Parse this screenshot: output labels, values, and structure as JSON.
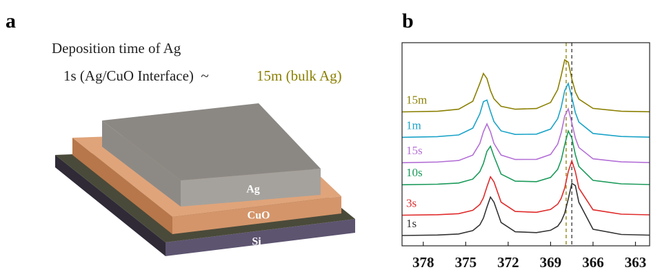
{
  "diagram": {
    "label": "a",
    "heading": "Deposition time of Ag",
    "range_start": "1s (Ag/CuO Interface)  ~",
    "range_end": "15m (bulk Ag)",
    "layers": [
      "Ag",
      "CuO",
      "Si"
    ]
  },
  "chart_data": {
    "type": "line",
    "label": "b",
    "x": [
      379.5,
      377,
      375.5,
      374.5,
      374,
      373.75,
      373.5,
      373.25,
      373,
      372.5,
      371.5,
      370,
      369,
      368.5,
      368.25,
      368,
      367.75,
      367.5,
      367.25,
      367,
      366,
      364,
      362
    ],
    "series": [
      {
        "name": "1s",
        "color": "#333333",
        "values": [
          0.61,
          0.64,
          0.7,
          0.9,
          1.24,
          1.64,
          2.29,
          2.88,
          2.58,
          1.38,
          0.83,
          0.78,
          0.92,
          1.16,
          1.45,
          1.93,
          2.76,
          3.69,
          3.56,
          2.57,
          0.98,
          0.67,
          0.63
        ]
      },
      {
        "name": "3s",
        "color": "#e02a2a",
        "values": [
          1.81,
          1.84,
          1.9,
          2.1,
          2.44,
          2.84,
          3.49,
          4.08,
          3.78,
          2.58,
          2.03,
          1.98,
          2.15,
          2.46,
          2.81,
          3.42,
          4.38,
          5.02,
          4.38,
          3.41,
          2.13,
          1.87,
          1.83
        ]
      },
      {
        "name": "10s",
        "color": "#1a9a5a",
        "values": [
          3.61,
          3.64,
          3.71,
          3.94,
          4.38,
          4.87,
          5.58,
          5.88,
          5.29,
          4.24,
          3.82,
          3.79,
          4.04,
          4.52,
          5.07,
          5.97,
          6.79,
          6.37,
          5.39,
          4.69,
          3.87,
          3.66,
          3.62
        ]
      },
      {
        "name": "15s",
        "color": "#b36fd6",
        "values": [
          4.91,
          4.95,
          5.04,
          5.36,
          6.05,
          6.74,
          7.2,
          6.74,
          6.05,
          5.36,
          5.1,
          5.11,
          5.4,
          6.01,
          6.69,
          7.67,
          8.09,
          7.27,
          6.37,
          5.81,
          5.14,
          4.96,
          4.92
        ]
      },
      {
        "name": "1m",
        "color": "#1aa3c8",
        "values": [
          6.41,
          6.45,
          6.55,
          6.95,
          7.8,
          8.52,
          8.61,
          7.94,
          7.34,
          6.79,
          6.58,
          6.6,
          6.9,
          7.51,
          8.19,
          9.17,
          9.59,
          8.77,
          7.87,
          7.31,
          6.64,
          6.46,
          6.42
        ]
      },
      {
        "name": "15m",
        "color": "#8a7f00",
        "values": [
          7.91,
          7.95,
          8.07,
          8.54,
          9.59,
          10.18,
          9.88,
          9.17,
          8.68,
          8.24,
          8.07,
          8.11,
          8.47,
          9.23,
          10.06,
          10.99,
          10.85,
          9.86,
          9.09,
          8.67,
          8.12,
          7.95,
          7.92
        ]
      }
    ],
    "xlim": [
      379.5,
      362
    ],
    "xticks": [
      378,
      375,
      372,
      369,
      366,
      363
    ],
    "ylim": [
      0,
      12
    ],
    "reference_lines": [
      {
        "x": 367.9,
        "color": "#8a7f00"
      },
      {
        "x": 367.5,
        "color": "#333333"
      }
    ]
  }
}
